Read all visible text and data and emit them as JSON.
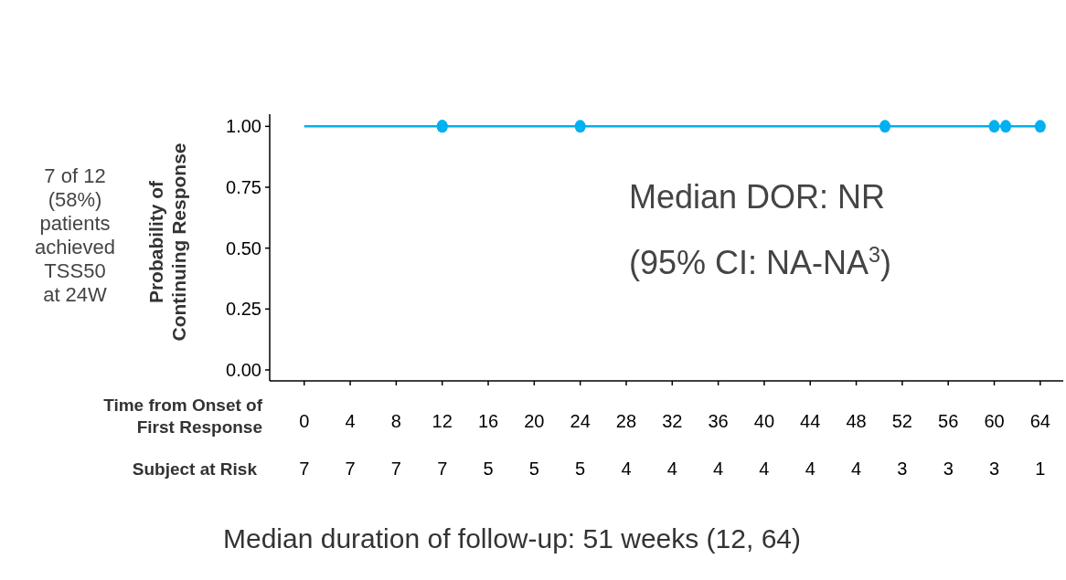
{
  "chart_data": {
    "type": "step",
    "xlabel": "Time from Onset of First Response",
    "ylabel": "Probability of Continuing Response",
    "xlim": [
      -3,
      66
    ],
    "xticks": [
      0,
      4,
      8,
      12,
      16,
      20,
      24,
      28,
      32,
      36,
      40,
      44,
      48,
      52,
      56,
      60,
      64
    ],
    "ylim": [
      -0.045,
      1.05
    ],
    "yticks": [
      {
        "value": 0,
        "label": "0.00"
      },
      {
        "value": 0.25,
        "label": "0.25"
      },
      {
        "value": 0.5,
        "label": "0.50"
      },
      {
        "value": 0.75,
        "label": "0.75"
      },
      {
        "value": 1,
        "label": "1.00"
      }
    ],
    "series": [
      {
        "color": "#00b0f0",
        "x": [
          0,
          64
        ],
        "values": [
          1,
          1
        ]
      },
      {
        "type": "scatter",
        "marker": "circle",
        "color": "#00b0f0",
        "x": [
          12,
          12,
          24,
          50.5,
          60,
          61,
          64
        ],
        "values": [
          1,
          1,
          1,
          1,
          1,
          1,
          1
        ]
      }
    ],
    "annotations": [
      "7 of 12 (58%) patients achieved TSS50 at 24W",
      "Median DOR: NR",
      "(95% CI: NA-NA$^{3}$)",
      "Subject at Risk",
      "Median duration of follow-up: 51 weeks (12, 64)",
      "7",
      "7",
      "7",
      "7",
      "5",
      "5",
      "5",
      "4",
      "4",
      "4",
      "4",
      "4",
      "4",
      "3",
      "3",
      "3",
      "1"
    ]
  }
}
